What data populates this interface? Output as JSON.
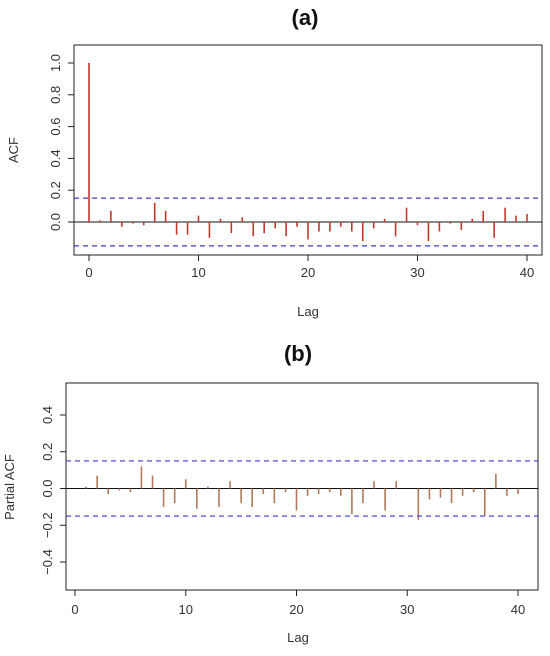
{
  "colors": {
    "bar": "#c0392b",
    "bar_b": "#b07a5a",
    "ci": "#3b3bd6",
    "zero": "#111111"
  },
  "chart_data": [
    {
      "type": "bar",
      "panel_label": "(a)",
      "xlabel": "Lag",
      "ylabel": "ACF",
      "xlim": [
        0,
        40
      ],
      "ylim": [
        -0.15,
        1.0
      ],
      "xticks": [
        0,
        10,
        20,
        30,
        40
      ],
      "yticks": [
        0.0,
        0.2,
        0.4,
        0.6,
        0.8,
        1.0
      ],
      "ytick_labels": [
        "0.0",
        "0.2",
        "0.4",
        "0.6",
        "0.8",
        "1.0"
      ],
      "ci": 0.15,
      "grid": false,
      "lags": [
        0,
        1,
        2,
        3,
        4,
        5,
        6,
        7,
        8,
        9,
        10,
        11,
        12,
        13,
        14,
        15,
        16,
        17,
        18,
        19,
        20,
        21,
        22,
        23,
        24,
        25,
        26,
        27,
        28,
        29,
        30,
        31,
        32,
        33,
        34,
        35,
        36,
        37,
        38,
        39,
        40
      ],
      "values": [
        1.0,
        0.01,
        0.07,
        -0.03,
        -0.01,
        -0.02,
        0.12,
        0.07,
        -0.08,
        -0.08,
        0.04,
        -0.1,
        0.02,
        -0.07,
        0.03,
        -0.09,
        -0.07,
        -0.04,
        -0.09,
        -0.03,
        -0.11,
        -0.06,
        -0.06,
        -0.03,
        -0.06,
        -0.12,
        -0.04,
        0.02,
        -0.09,
        0.09,
        -0.02,
        -0.12,
        -0.06,
        -0.01,
        -0.05,
        0.02,
        0.07,
        -0.1,
        0.09,
        0.04,
        0.05
      ]
    },
    {
      "type": "bar",
      "panel_label": "(b)",
      "xlabel": "Lag",
      "ylabel": "Partial ACF",
      "xlim": [
        0,
        40
      ],
      "ylim": [
        -0.5,
        0.5
      ],
      "xticks": [
        0,
        10,
        20,
        30,
        40
      ],
      "yticks": [
        -0.4,
        -0.2,
        0.0,
        0.2,
        0.4
      ],
      "ytick_labels": [
        "−0.4",
        "−0.2",
        "0.0",
        "0.2",
        "0.4"
      ],
      "ci": 0.15,
      "grid": false,
      "lags": [
        1,
        2,
        3,
        4,
        5,
        6,
        7,
        8,
        9,
        10,
        11,
        12,
        13,
        14,
        15,
        16,
        17,
        18,
        19,
        20,
        21,
        22,
        23,
        24,
        25,
        26,
        27,
        28,
        29,
        30,
        31,
        32,
        33,
        34,
        35,
        36,
        37,
        38,
        39,
        40
      ],
      "values": [
        0.01,
        0.07,
        -0.03,
        -0.01,
        -0.02,
        0.12,
        0.07,
        -0.1,
        -0.08,
        0.05,
        -0.11,
        0.01,
        -0.1,
        0.04,
        -0.08,
        -0.1,
        -0.03,
        -0.08,
        -0.02,
        -0.12,
        -0.04,
        -0.03,
        -0.02,
        -0.04,
        -0.14,
        -0.08,
        0.04,
        -0.12,
        0.04,
        0.0,
        -0.17,
        -0.06,
        -0.05,
        -0.08,
        -0.04,
        -0.02,
        -0.15,
        0.08,
        -0.04,
        -0.03
      ]
    }
  ]
}
